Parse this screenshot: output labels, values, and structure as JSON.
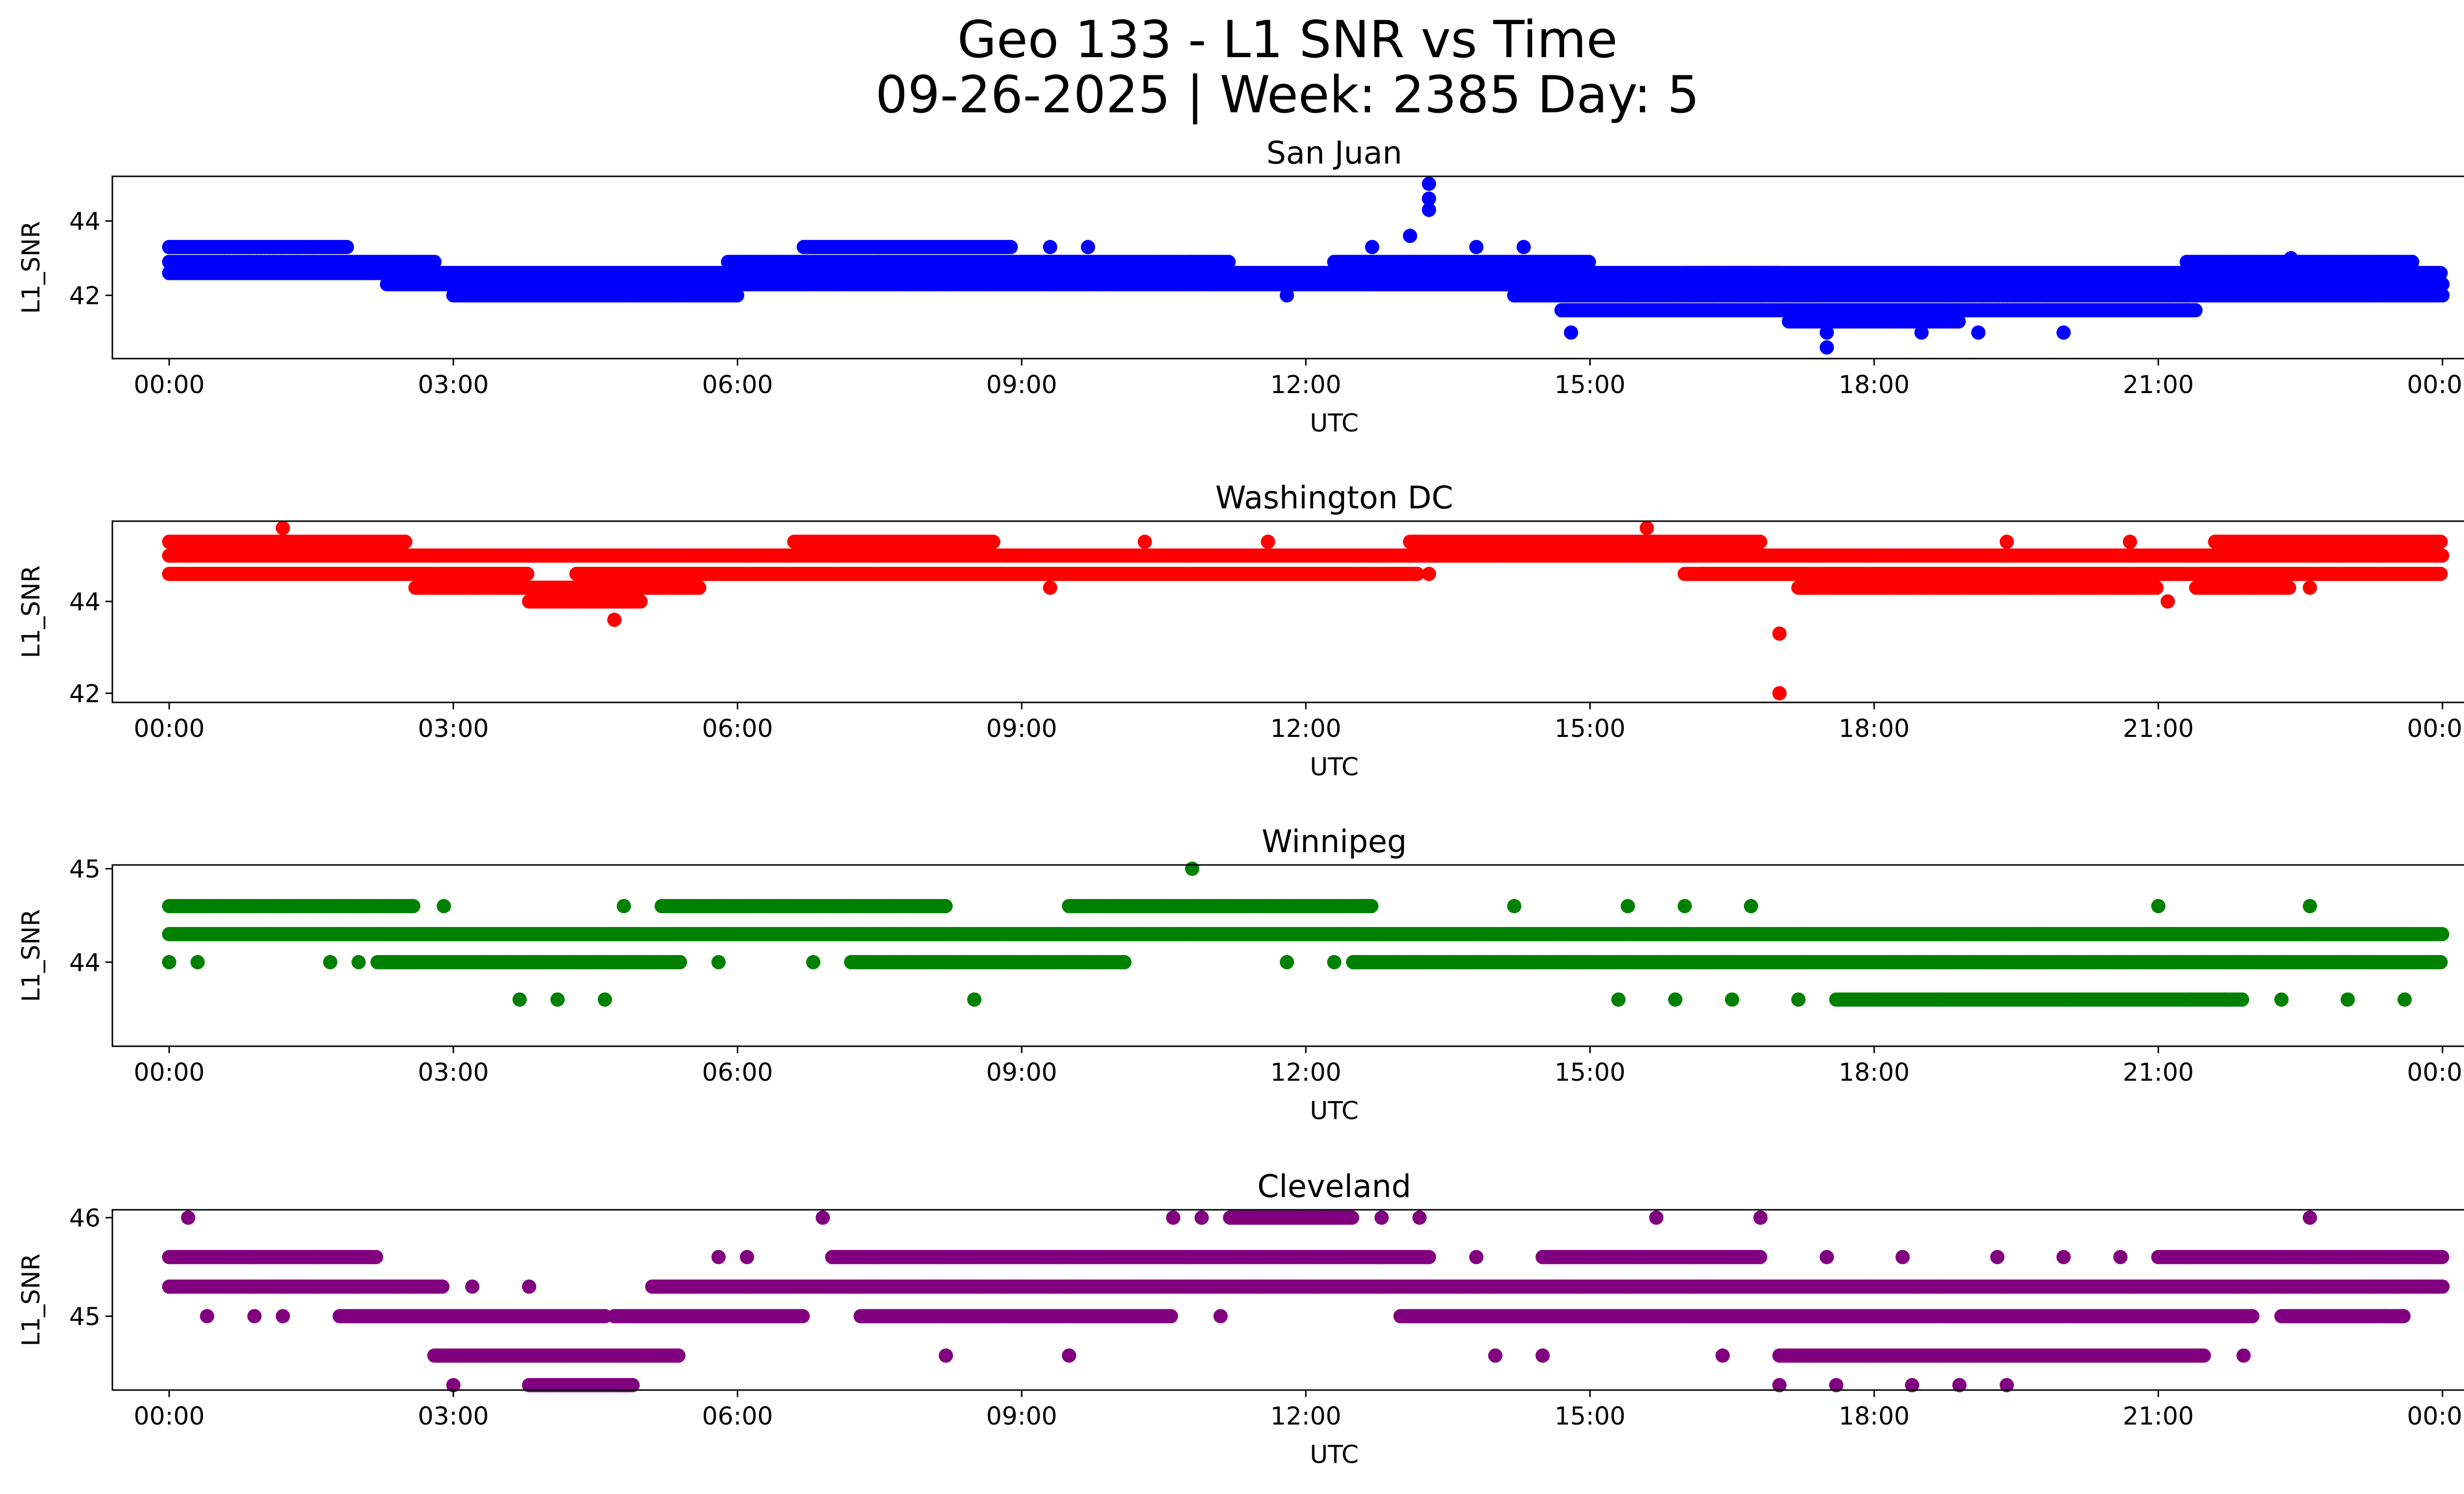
{
  "figure": {
    "title_line1": "Geo 133 - L1 SNR vs Time",
    "title_line2": "09-26-2025 | Week: 2385 Day: 5"
  },
  "chart_data": [
    {
      "type": "scatter",
      "title": "San Juan",
      "xlabel": "UTC",
      "ylabel": "L1_SNR",
      "color": "#0000ff",
      "xlim": [
        -0.6,
        25.2
      ],
      "ylim": [
        40.3,
        45.2
      ],
      "xticks": [
        0,
        3,
        6,
        9,
        12,
        15,
        18,
        21,
        24
      ],
      "xticklabels": [
        "00:00",
        "03:00",
        "06:00",
        "09:00",
        "12:00",
        "15:00",
        "18:00",
        "21:00",
        "00:00"
      ],
      "yticks": [
        42,
        44
      ],
      "yticklabels": [
        "42",
        "44"
      ],
      "levels": [
        {
          "y": 43.3,
          "from": 0,
          "to": 1.9
        },
        {
          "y": 42.9,
          "from": 0,
          "to": 2.8
        },
        {
          "y": 42.6,
          "from": 0,
          "to": 17.0
        },
        {
          "y": 42.3,
          "from": 2.3,
          "to": 24
        },
        {
          "y": 42.0,
          "from": 3.0,
          "to": 6.0
        },
        {
          "y": 42.9,
          "from": 5.9,
          "to": 9.6
        },
        {
          "y": 43.3,
          "from": 6.7,
          "to": 8.9
        },
        {
          "y": 42.9,
          "from": 9.0,
          "to": 11.2
        },
        {
          "y": 42.9,
          "from": 12.3,
          "to": 15.0
        },
        {
          "y": 42.3,
          "from": 12.6,
          "to": 16.5
        },
        {
          "y": 42.0,
          "from": 14.2,
          "to": 24
        },
        {
          "y": 41.6,
          "from": 14.7,
          "to": 21.4
        },
        {
          "y": 41.3,
          "from": 17.1,
          "to": 18.9
        },
        {
          "y": 42.6,
          "from": 16.0,
          "to": 24
        },
        {
          "y": 42.9,
          "from": 21.3,
          "to": 23.7
        },
        {
          "y": 42.3,
          "from": 20.3,
          "to": 24
        }
      ],
      "points": [
        [
          13.3,
          45.0
        ],
        [
          13.3,
          44.6
        ],
        [
          13.3,
          44.3
        ],
        [
          13.1,
          43.6
        ],
        [
          12.7,
          43.3
        ],
        [
          13.8,
          43.3
        ],
        [
          14.3,
          43.3
        ],
        [
          14.8,
          41.0
        ],
        [
          17.5,
          40.6
        ],
        [
          17.5,
          41.0
        ],
        [
          18.5,
          41.0
        ],
        [
          18.6,
          42.6
        ],
        [
          9.3,
          43.3
        ],
        [
          9.7,
          43.3
        ],
        [
          1.5,
          43.3
        ],
        [
          3.1,
          42.0
        ],
        [
          4.0,
          42.0
        ],
        [
          11.8,
          42.0
        ],
        [
          7.5,
          43.3
        ],
        [
          22.4,
          43.0
        ],
        [
          19.1,
          41.0
        ],
        [
          20.0,
          41.0
        ],
        [
          21.3,
          41.6
        ]
      ]
    },
    {
      "type": "scatter",
      "title": "Washington DC",
      "xlabel": "UTC",
      "ylabel": "L1_SNR",
      "color": "#ff0000",
      "xlim": [
        -0.6,
        25.2
      ],
      "ylim": [
        41.8,
        45.75
      ],
      "xticks": [
        0,
        3,
        6,
        9,
        12,
        15,
        18,
        21,
        24
      ],
      "xticklabels": [
        "00:00",
        "03:00",
        "06:00",
        "09:00",
        "12:00",
        "15:00",
        "18:00",
        "21:00",
        "00:00"
      ],
      "yticks": [
        42,
        44
      ],
      "yticklabels": [
        "42",
        "44"
      ],
      "levels": [
        {
          "y": 45.3,
          "from": 0,
          "to": 2.5
        },
        {
          "y": 45.0,
          "from": 0,
          "to": 24
        },
        {
          "y": 44.6,
          "from": 0,
          "to": 3.8
        },
        {
          "y": 44.6,
          "from": 4.3,
          "to": 13.2
        },
        {
          "y": 44.6,
          "from": 16.0,
          "to": 24
        },
        {
          "y": 44.3,
          "from": 2.6,
          "to": 5.6
        },
        {
          "y": 44.0,
          "from": 3.8,
          "to": 5.0
        },
        {
          "y": 45.3,
          "from": 6.6,
          "to": 8.7
        },
        {
          "y": 45.3,
          "from": 13.1,
          "to": 16.8
        },
        {
          "y": 44.3,
          "from": 17.2,
          "to": 21.0
        },
        {
          "y": 45.3,
          "from": 21.6,
          "to": 24
        },
        {
          "y": 44.3,
          "from": 21.4,
          "to": 22.4
        }
      ],
      "points": [
        [
          1.2,
          45.6
        ],
        [
          15.6,
          45.6
        ],
        [
          17.0,
          43.3
        ],
        [
          17.0,
          42.0
        ],
        [
          4.7,
          43.6
        ],
        [
          21.1,
          44.0
        ],
        [
          19.4,
          45.3
        ],
        [
          20.7,
          45.3
        ],
        [
          10.3,
          45.3
        ],
        [
          11.6,
          45.3
        ],
        [
          9.3,
          44.3
        ],
        [
          13.3,
          44.6
        ],
        [
          16.2,
          44.6
        ],
        [
          22.6,
          44.3
        ]
      ]
    },
    {
      "type": "scatter",
      "title": "Winnipeg",
      "xlabel": "UTC",
      "ylabel": "L1_SNR",
      "color": "#008000",
      "xlim": [
        -0.6,
        25.2
      ],
      "ylim": [
        43.1,
        45.04
      ],
      "xticks": [
        0,
        3,
        6,
        9,
        12,
        15,
        18,
        21,
        24
      ],
      "xticklabels": [
        "00:00",
        "03:00",
        "06:00",
        "09:00",
        "12:00",
        "15:00",
        "18:00",
        "21:00",
        "00:00"
      ],
      "yticks": [
        44,
        45
      ],
      "yticklabels": [
        "44",
        "45"
      ],
      "levels": [
        {
          "y": 44.3,
          "from": 0,
          "to": 24
        },
        {
          "y": 44.6,
          "from": 0,
          "to": 2.6
        },
        {
          "y": 44.6,
          "from": 5.2,
          "to": 8.2
        },
        {
          "y": 44.6,
          "from": 9.5,
          "to": 12.7
        },
        {
          "y": 44.0,
          "from": 2.2,
          "to": 5.4
        },
        {
          "y": 44.0,
          "from": 7.2,
          "to": 10.1
        },
        {
          "y": 44.0,
          "from": 12.5,
          "to": 24
        },
        {
          "y": 43.6,
          "from": 17.6,
          "to": 21.9
        }
      ],
      "points": [
        [
          10.8,
          45.0
        ],
        [
          21.0,
          44.6
        ],
        [
          22.6,
          44.6
        ],
        [
          4.8,
          44.6
        ],
        [
          8.5,
          43.6
        ],
        [
          3.7,
          43.6
        ],
        [
          4.1,
          43.6
        ],
        [
          4.6,
          43.6
        ],
        [
          0.0,
          44.0
        ],
        [
          0.3,
          44.0
        ],
        [
          1.7,
          44.0
        ],
        [
          2.0,
          44.0
        ],
        [
          11.8,
          44.0
        ],
        [
          12.3,
          44.0
        ],
        [
          15.3,
          43.6
        ],
        [
          15.9,
          43.6
        ],
        [
          16.5,
          43.6
        ],
        [
          17.2,
          43.6
        ],
        [
          23.0,
          43.6
        ],
        [
          23.6,
          43.6
        ],
        [
          16.0,
          44.6
        ],
        [
          16.7,
          44.6
        ],
        [
          15.4,
          44.6
        ],
        [
          14.2,
          44.6
        ],
        [
          12.6,
          44.6
        ],
        [
          2.9,
          44.6
        ],
        [
          6.8,
          44.0
        ],
        [
          5.8,
          44.0
        ],
        [
          22.3,
          43.6
        ],
        [
          21.7,
          43.6
        ]
      ]
    },
    {
      "type": "scatter",
      "title": "Cleveland",
      "xlabel": "UTC",
      "ylabel": "L1_SNR",
      "color": "#800080",
      "xlim": [
        -0.6,
        25.2
      ],
      "ylim": [
        44.25,
        46.08
      ],
      "xticks": [
        0,
        3,
        6,
        9,
        12,
        15,
        18,
        21,
        24
      ],
      "xticklabels": [
        "00:00",
        "03:00",
        "06:00",
        "09:00",
        "12:00",
        "15:00",
        "18:00",
        "21:00",
        "00:00"
      ],
      "yticks": [
        45,
        46
      ],
      "yticklabels": [
        "45",
        "46"
      ],
      "levels": [
        {
          "y": 45.6,
          "from": 0,
          "to": 2.2
        },
        {
          "y": 45.3,
          "from": 0,
          "to": 2.9
        },
        {
          "y": 45.3,
          "from": 5.1,
          "to": 24
        },
        {
          "y": 45.0,
          "from": 1.8,
          "to": 4.6
        },
        {
          "y": 45.0,
          "from": 4.7,
          "to": 6.7
        },
        {
          "y": 45.0,
          "from": 7.3,
          "to": 10.6
        },
        {
          "y": 45.0,
          "from": 13.0,
          "to": 16.0
        },
        {
          "y": 45.0,
          "from": 16.0,
          "to": 22.0
        },
        {
          "y": 44.6,
          "from": 2.8,
          "to": 5.4
        },
        {
          "y": 44.6,
          "from": 17.0,
          "to": 21.5
        },
        {
          "y": 45.6,
          "from": 7.0,
          "to": 13.3
        },
        {
          "y": 45.6,
          "from": 14.5,
          "to": 16.8
        },
        {
          "y": 46.0,
          "from": 11.2,
          "to": 12.5
        },
        {
          "y": 45.6,
          "from": 21.0,
          "to": 24
        },
        {
          "y": 45.0,
          "from": 22.3,
          "to": 23.6
        },
        {
          "y": 44.3,
          "from": 3.8,
          "to": 4.9
        }
      ],
      "points": [
        [
          0.2,
          46.0
        ],
        [
          6.9,
          46.0
        ],
        [
          10.6,
          46.0
        ],
        [
          10.9,
          46.0
        ],
        [
          13.2,
          46.0
        ],
        [
          12.8,
          46.0
        ],
        [
          15.7,
          46.0
        ],
        [
          16.8,
          46.0
        ],
        [
          22.6,
          46.0
        ],
        [
          0.4,
          45.0
        ],
        [
          0.9,
          45.0
        ],
        [
          1.2,
          45.0
        ],
        [
          3.0,
          44.3
        ],
        [
          8.2,
          44.6
        ],
        [
          9.5,
          44.6
        ],
        [
          14.0,
          44.6
        ],
        [
          14.5,
          44.6
        ],
        [
          16.4,
          44.6
        ],
        [
          17.0,
          44.3
        ],
        [
          17.6,
          44.3
        ],
        [
          18.4,
          44.3
        ],
        [
          18.9,
          44.3
        ],
        [
          19.4,
          44.3
        ],
        [
          10.2,
          45.0
        ],
        [
          11.1,
          45.0
        ],
        [
          23.4,
          45.0
        ],
        [
          5.8,
          45.6
        ],
        [
          6.1,
          45.6
        ],
        [
          13.8,
          45.6
        ],
        [
          17.5,
          45.6
        ],
        [
          18.3,
          45.6
        ],
        [
          19.3,
          45.6
        ],
        [
          20.0,
          45.6
        ],
        [
          20.6,
          45.6
        ],
        [
          3.2,
          45.3
        ],
        [
          3.8,
          45.3
        ],
        [
          21.9,
          44.6
        ]
      ]
    }
  ]
}
